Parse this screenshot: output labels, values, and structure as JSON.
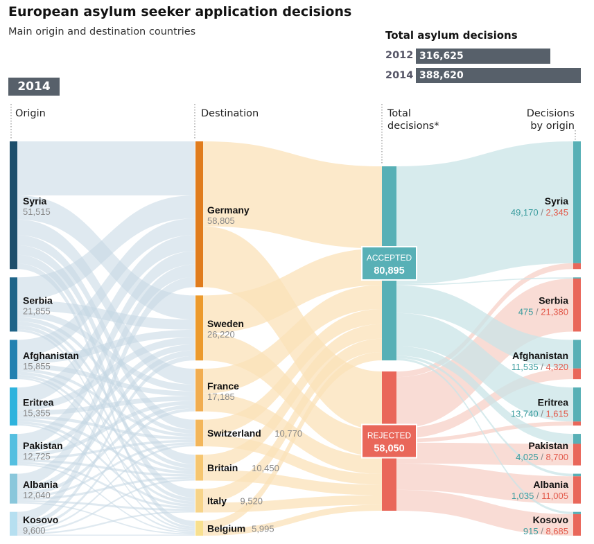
{
  "title": "European asylum seeker application decisions",
  "subtitle": "Main origin and destination countries",
  "year_badge": "2014",
  "totals": {
    "heading": "Total asylum decisions",
    "rows": [
      {
        "year": "2012",
        "value": "316,625",
        "num": 316625
      },
      {
        "year": "2014",
        "value": "388,620",
        "num": 388620
      }
    ]
  },
  "columns": {
    "origin": "Origin",
    "destination": "Destination",
    "total": [
      "Total",
      "decisions*"
    ],
    "by_origin": [
      "Decisions",
      "by origin"
    ]
  },
  "colors": {
    "origin_bars": [
      "#1d4e6b",
      "#1f6488",
      "#2381b0",
      "#2eb3dd",
      "#55bfe0",
      "#8ac7db",
      "#b6dff0"
    ],
    "destination_bars": [
      "#e07c1d",
      "#ec9a2c",
      "#f1ad50",
      "#f3b65a",
      "#f6c670",
      "#f7d489",
      "#f8e08f"
    ],
    "accepted": "#58b0b6",
    "rejected": "#e9675a",
    "accepted_text": "#3a9c9e",
    "rejected_text": "#e2594a",
    "origin_flow": "#c5d7e3",
    "destination_flow": "#fbe2b8",
    "accepted_flow": "#c9e4e7",
    "rejected_flow": "#f8d3cb",
    "badge": "#57606a"
  },
  "chart_data": {
    "type": "sankey",
    "title": "European asylum seeker application decisions",
    "subtitle": "Main origin and destination countries",
    "year": "2014",
    "origins": [
      {
        "name": "Syria",
        "value": 51515,
        "label": "51,515"
      },
      {
        "name": "Serbia",
        "value": 21855,
        "label": "21,855"
      },
      {
        "name": "Afghanistan",
        "value": 15855,
        "label": "15,855"
      },
      {
        "name": "Eritrea",
        "value": 15355,
        "label": "15,355"
      },
      {
        "name": "Pakistan",
        "value": 12725,
        "label": "12,725"
      },
      {
        "name": "Albania",
        "value": 12040,
        "label": "12,040"
      },
      {
        "name": "Kosovo",
        "value": 9600,
        "label": "9,600"
      }
    ],
    "destinations": [
      {
        "name": "Germany",
        "value": 58805,
        "label": "58,805"
      },
      {
        "name": "Sweden",
        "value": 26220,
        "label": "26,220"
      },
      {
        "name": "France",
        "value": 17185,
        "label": "17,185"
      },
      {
        "name": "Switzerland",
        "value": 10770,
        "label": "10,770"
      },
      {
        "name": "Britain",
        "value": 10450,
        "label": "10,450"
      },
      {
        "name": "Italy",
        "value": 9520,
        "label": "9,520"
      },
      {
        "name": "Belgium",
        "value": 5995,
        "label": "5,995"
      }
    ],
    "totals": [
      {
        "name": "ACCEPTED",
        "value": 80895,
        "label": "80,895"
      },
      {
        "name": "REJECTED",
        "value": 58050,
        "label": "58,050"
      }
    ],
    "decisions_by_origin": [
      {
        "name": "Syria",
        "accepted": 49170,
        "rejected": 2345,
        "accepted_label": "49,170",
        "rejected_label": "2,345"
      },
      {
        "name": "Serbia",
        "accepted": 475,
        "rejected": 21380,
        "accepted_label": "475",
        "rejected_label": "21,380"
      },
      {
        "name": "Afghanistan",
        "accepted": 11535,
        "rejected": 4320,
        "accepted_label": "11,535",
        "rejected_label": "4,320"
      },
      {
        "name": "Eritrea",
        "accepted": 13740,
        "rejected": 1615,
        "accepted_label": "13,740",
        "rejected_label": "1,615"
      },
      {
        "name": "Pakistan",
        "accepted": 4025,
        "rejected": 8700,
        "accepted_label": "4,025",
        "rejected_label": "8,700"
      },
      {
        "name": "Albania",
        "accepted": 1035,
        "rejected": 11005,
        "accepted_label": "1,035",
        "rejected_label": "11,005"
      },
      {
        "name": "Kosovo",
        "accepted": 915,
        "rejected": 8685,
        "accepted_label": "915",
        "rejected_label": "8,685"
      }
    ]
  }
}
